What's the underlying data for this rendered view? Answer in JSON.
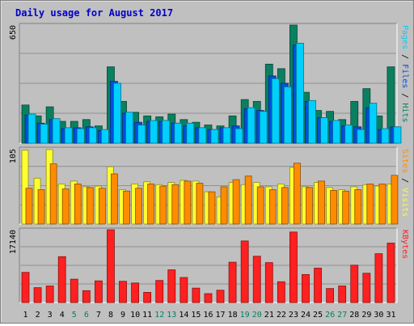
{
  "chart_data": {
    "type": "bar",
    "title": "Daily usage for August 2017",
    "colors": {
      "background": "#c0c0c0",
      "title": "#0000cc",
      "hits": "#0a8060",
      "files": "#0050e0",
      "pages": "#00d0ff",
      "sites": "#ff8c00",
      "visits": "#ffff30",
      "kbytes": "#ff2020",
      "weekend_label": "#008060",
      "weekday_label": "#000000"
    },
    "categories": [
      "1",
      "2",
      "3",
      "4",
      "5",
      "6",
      "7",
      "8",
      "9",
      "10",
      "11",
      "12",
      "13",
      "14",
      "15",
      "16",
      "17",
      "18",
      "19",
      "20",
      "21",
      "22",
      "23",
      "24",
      "25",
      "26",
      "27",
      "28",
      "29",
      "30",
      "31"
    ],
    "weekend_days": [
      "5",
      "6",
      "12",
      "13",
      "19",
      "20",
      "26",
      "27"
    ],
    "panels": [
      {
        "id": "hits",
        "max_label": "650",
        "ylim": [
          0,
          650
        ],
        "legend": [
          {
            "text": "Pages",
            "color": "#00d0ff"
          },
          {
            "text": " / ",
            "color": "#000000"
          },
          {
            "text": "Files",
            "color": "#0050e0"
          },
          {
            "text": " / ",
            "color": "#000000"
          },
          {
            "text": "Hits",
            "color": "#0a8060"
          }
        ],
        "series": [
          {
            "name": "Hits",
            "values": [
              210,
              150,
              200,
              120,
              120,
              130,
              95,
              420,
              230,
              170,
              150,
              145,
              160,
              130,
              115,
              100,
              95,
              150,
              240,
              230,
              435,
              410,
              650,
              280,
              180,
              175,
              130,
              230,
              300,
              150,
              420
            ]
          },
          {
            "name": "Files",
            "values": [
              155,
              110,
              130,
              80,
              85,
              90,
              70,
              340,
              165,
              115,
              120,
              120,
              110,
              95,
              85,
              75,
              85,
              95,
              190,
              180,
              370,
              330,
              540,
              230,
              140,
              120,
              95,
              90,
              195,
              75,
              90
            ]
          },
          {
            "name": "Pages",
            "values": [
              160,
              105,
              135,
              85,
              80,
              85,
              75,
              330,
              170,
              100,
              125,
              125,
              110,
              110,
              85,
              75,
              85,
              80,
              195,
              175,
              355,
              310,
              550,
              235,
              140,
              125,
              100,
              75,
              220,
              80,
              90
            ]
          }
        ]
      },
      {
        "id": "visits",
        "max_label": "105",
        "ylim": [
          0,
          105
        ],
        "legend": [
          {
            "text": "Sites",
            "color": "#ff8c00"
          },
          {
            "text": " / ",
            "color": "#000000"
          },
          {
            "text": "Visits",
            "color": "#ffff30"
          }
        ],
        "series": [
          {
            "name": "Visits",
            "values": [
              103,
              64,
              104,
              56,
              60,
              52,
              53,
              80,
              48,
              56,
              59,
              55,
              58,
              61,
              60,
              45,
              38,
              58,
              55,
              58,
              52,
              56,
              79,
              52,
              58,
              51,
              48,
              52,
              55,
              53,
              56
            ]
          },
          {
            "name": "Sites",
            "values": [
              50,
              48,
              84,
              49,
              56,
              51,
              50,
              70,
              46,
              50,
              56,
              53,
              55,
              60,
              57,
              45,
              52,
              62,
              67,
              52,
              48,
              51,
              85,
              51,
              60,
              47,
              46,
              48,
              56,
              56,
              68
            ]
          }
        ]
      },
      {
        "id": "kbytes",
        "max_label": "17140",
        "ylim": [
          0,
          17140
        ],
        "legend": [
          {
            "text": "KBytes",
            "color": "#ff2020"
          }
        ],
        "series": [
          {
            "name": "KBytes",
            "values": [
              7100,
              3500,
              3900,
              10800,
              5500,
              2800,
              5100,
              17140,
              5000,
              4600,
              2400,
              5200,
              7700,
              5900,
              3400,
              2100,
              2900,
              9500,
              14500,
              10900,
              9400,
              4900,
              16600,
              6600,
              8100,
              3300,
              3900,
              8800,
              6900,
              11500,
              14000
            ]
          }
        ]
      }
    ]
  }
}
